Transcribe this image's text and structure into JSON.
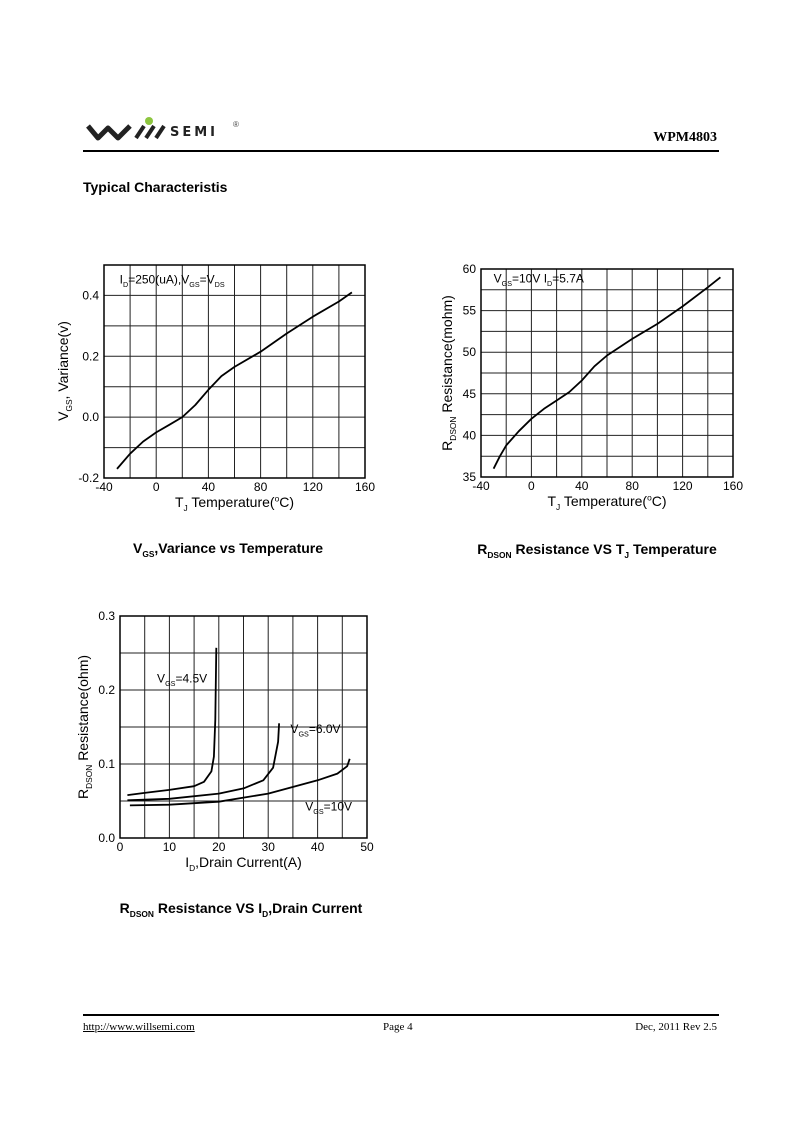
{
  "header": {
    "logo_text": "SEMI",
    "logo_reg": "®",
    "logo_brand": "WILLSEMI",
    "part_number": "WPM4803"
  },
  "section_title": "Typical  Characteristis",
  "footer": {
    "url": "http://www.willsemi.com",
    "page": "Page 4",
    "revision": "Dec, 2011 Rev 2.5"
  },
  "colors": {
    "logo_green": "#8dc63f",
    "line": "#000000",
    "grid": "#000000"
  },
  "chart_data": [
    {
      "type": "line",
      "title": [
        [
          "V",
          ""
        ],
        [
          "GS",
          "sub"
        ],
        [
          ",Variance vs Temperature",
          ""
        ]
      ],
      "xlabel": [
        [
          "T",
          ""
        ],
        [
          "J",
          "sub"
        ],
        [
          " Temperature(",
          ""
        ],
        [
          "o",
          "sup"
        ],
        [
          "C)",
          ""
        ]
      ],
      "ylabel": [
        [
          "V",
          ""
        ],
        [
          "GS",
          "sub"
        ],
        [
          ", Variance(v)",
          ""
        ]
      ],
      "annotations": [
        {
          "text": [
            [
              "I",
              ""
            ],
            [
              "D",
              "sub"
            ],
            [
              "=250(uA),V",
              ""
            ],
            [
              "GS",
              "sub"
            ],
            [
              "=V",
              ""
            ],
            [
              "DS",
              "sub"
            ]
          ],
          "at": [
            -28,
            0.44
          ]
        }
      ],
      "xlim": [
        -40,
        160
      ],
      "ylim": [
        -0.2,
        0.5
      ],
      "xticks": [
        -40,
        0,
        40,
        80,
        120,
        160
      ],
      "xtick_labels": [
        "-40",
        "0",
        "40",
        "80",
        "120",
        "160"
      ],
      "yticks": [
        -0.2,
        0.0,
        0.2,
        0.4
      ],
      "ytick_labels": [
        "-0.2",
        "0.0",
        "0.2",
        "0.4"
      ],
      "xgrid_step": 20,
      "ygrid_step": 0.1,
      "grid": true,
      "series": [
        {
          "name": "VGS variance",
          "x": [
            -30,
            -20,
            -10,
            0,
            10,
            20,
            30,
            40,
            50,
            60,
            80,
            100,
            120,
            140,
            150
          ],
          "y": [
            -0.17,
            -0.12,
            -0.08,
            -0.05,
            -0.025,
            0,
            0.04,
            0.09,
            0.135,
            0.165,
            0.215,
            0.275,
            0.33,
            0.38,
            0.41
          ]
        }
      ]
    },
    {
      "type": "line",
      "title": [
        [
          "R",
          ""
        ],
        [
          "DSON",
          "sub"
        ],
        [
          " Resistance VS T",
          ""
        ],
        [
          "J",
          "sub"
        ],
        [
          " Temperature",
          ""
        ]
      ],
      "xlabel": [
        [
          "T",
          ""
        ],
        [
          "J",
          "sub"
        ],
        [
          " Temperature(",
          ""
        ],
        [
          "o",
          "sup"
        ],
        [
          "C)",
          ""
        ]
      ],
      "ylabel": [
        [
          "R",
          ""
        ],
        [
          "DSON",
          "sub"
        ],
        [
          " Resistance(mohm)",
          ""
        ]
      ],
      "annotations": [
        {
          "text": [
            [
              "V",
              ""
            ],
            [
              "GS",
              "sub"
            ],
            [
              "=10V I",
              ""
            ],
            [
              "D",
              "sub"
            ],
            [
              "=5.7A",
              ""
            ]
          ],
          "at": [
            -30,
            58.4
          ]
        }
      ],
      "xlim": [
        -40,
        160
      ],
      "ylim": [
        35,
        60
      ],
      "xticks": [
        -40,
        0,
        40,
        80,
        120,
        160
      ],
      "xtick_labels": [
        "-40",
        "0",
        "40",
        "80",
        "120",
        "160"
      ],
      "yticks": [
        35,
        40,
        45,
        50,
        55,
        60
      ],
      "ytick_labels": [
        "35",
        "40",
        "45",
        "50",
        "55",
        "60"
      ],
      "xgrid_step": 20,
      "ygrid_step": 2.5,
      "grid": true,
      "series": [
        {
          "name": "RDSON",
          "x": [
            -30,
            -25,
            -20,
            -10,
            0,
            10,
            20,
            30,
            40,
            50,
            60,
            80,
            100,
            120,
            140,
            150
          ],
          "y": [
            36,
            37.5,
            38.8,
            40.5,
            42,
            43.2,
            44.2,
            45.2,
            46.6,
            48.3,
            49.6,
            51.6,
            53.4,
            55.5,
            57.8,
            59
          ]
        }
      ]
    },
    {
      "type": "line",
      "title": [
        [
          "R",
          ""
        ],
        [
          "DSON",
          "sub"
        ],
        [
          " Resistance VS I",
          ""
        ],
        [
          "D",
          "sub"
        ],
        [
          ",Drain Current",
          ""
        ]
      ],
      "xlabel": [
        [
          "I",
          ""
        ],
        [
          "D",
          "sub"
        ],
        [
          ",Drain Current(A)",
          ""
        ]
      ],
      "ylabel": [
        [
          "R",
          ""
        ],
        [
          "DSON",
          "sub"
        ],
        [
          " Resistance(ohm)",
          ""
        ]
      ],
      "annotations": [
        {
          "text": [
            [
              "V",
              ""
            ],
            [
              "GS",
              "sub"
            ],
            [
              "=4.5V",
              ""
            ]
          ],
          "at": [
            7.5,
            0.21
          ]
        },
        {
          "text": [
            [
              "V",
              ""
            ],
            [
              "GS",
              "sub"
            ],
            [
              "=6.0V",
              ""
            ]
          ],
          "at": [
            34.5,
            0.142
          ]
        },
        {
          "text": [
            [
              "V",
              ""
            ],
            [
              "GS",
              "sub"
            ],
            [
              "=10V",
              ""
            ]
          ],
          "at": [
            37.5,
            0.037
          ]
        }
      ],
      "xlim": [
        0,
        50
      ],
      "ylim": [
        0,
        0.3
      ],
      "xticks": [
        0,
        10,
        20,
        30,
        40,
        50
      ],
      "xtick_labels": [
        "0",
        "10",
        "20",
        "30",
        "40",
        "50"
      ],
      "yticks": [
        0,
        0.1,
        0.2,
        0.3
      ],
      "ytick_labels": [
        "0.0",
        "0.1",
        "0.2",
        "0.3"
      ],
      "xgrid_step": 5,
      "ygrid_step": 0.05,
      "grid": true,
      "series": [
        {
          "name": "VGS=4.5V",
          "x": [
            1.5,
            5,
            10,
            15,
            17,
            18.5,
            19,
            19.3,
            19.5
          ],
          "y": [
            0.058,
            0.061,
            0.065,
            0.07,
            0.076,
            0.09,
            0.11,
            0.16,
            0.257
          ]
        },
        {
          "name": "VGS=6.0V",
          "x": [
            1.5,
            10,
            20,
            25,
            29,
            31,
            32,
            32.2
          ],
          "y": [
            0.051,
            0.053,
            0.06,
            0.067,
            0.078,
            0.095,
            0.13,
            0.155
          ]
        },
        {
          "name": "VGS=10V",
          "x": [
            2,
            10,
            20,
            30,
            40,
            44,
            46,
            46.5
          ],
          "y": [
            0.044,
            0.045,
            0.049,
            0.06,
            0.078,
            0.087,
            0.097,
            0.107
          ]
        }
      ]
    }
  ]
}
